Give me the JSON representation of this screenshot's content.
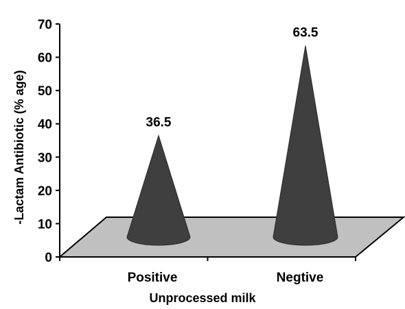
{
  "colors": {
    "cone": "#3f3f3f",
    "cone_edge": "#2a2a2a",
    "floor": "#c0c0c0",
    "floor_edge": "#000000",
    "axis": "#000000",
    "background": "#ffffff"
  },
  "chart_data": {
    "type": "bar",
    "shape": "cone-3d",
    "categories": [
      "Positive",
      "Negtive"
    ],
    "values": [
      36.5,
      63.5
    ],
    "data_labels": [
      "36.5",
      "63.5"
    ],
    "xlabel": "Unprocessed milk",
    "ylabel": "-Lactam Antibiotic (% age)",
    "ylim": [
      0,
      70
    ],
    "yticks": [
      "0",
      "10",
      "20",
      "30",
      "40",
      "50",
      "60",
      "70"
    ],
    "grid": false,
    "legend": false
  }
}
